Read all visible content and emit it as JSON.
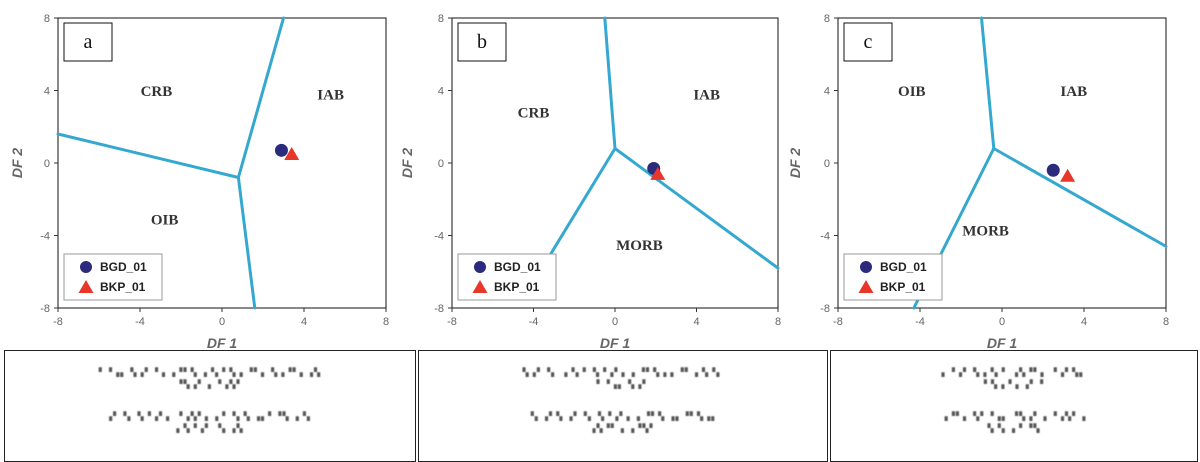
{
  "chart_data": [
    {
      "type": "scatter",
      "panel_label": "a",
      "xlabel": "DF 1",
      "ylabel": "DF 2",
      "xlim": [
        -8,
        8
      ],
      "ylim": [
        -8,
        8
      ],
      "xticks": [
        -8,
        -4,
        0,
        4,
        8
      ],
      "yticks": [
        -8,
        -4,
        0,
        4,
        8
      ],
      "grid": false,
      "legend_position": "bottom-left",
      "fields": [
        {
          "label": "CRB",
          "x": -3.2,
          "y": 3.7
        },
        {
          "label": "IAB",
          "x": 5.3,
          "y": 3.5
        },
        {
          "label": "OIB",
          "x": -2.8,
          "y": -3.4
        }
      ],
      "boundaries": [
        [
          [
            -8,
            1.6
          ],
          [
            0.8,
            -0.8
          ]
        ],
        [
          [
            0.8,
            -0.8
          ],
          [
            3.0,
            8
          ]
        ],
        [
          [
            0.8,
            -0.8
          ],
          [
            1.6,
            -8
          ]
        ]
      ],
      "series": [
        {
          "name": "BGD_01",
          "marker": "circle",
          "color": "#2b2a7c",
          "x": [
            2.9
          ],
          "y": [
            0.7
          ]
        },
        {
          "name": "BKP_01",
          "marker": "triangle",
          "color": "#e8362a",
          "x": [
            3.4
          ],
          "y": [
            0.5
          ]
        }
      ]
    },
    {
      "type": "scatter",
      "panel_label": "b",
      "xlabel": "DF 1",
      "ylabel": "DF 2",
      "xlim": [
        -8,
        8
      ],
      "ylim": [
        -8,
        8
      ],
      "xticks": [
        -8,
        -4,
        0,
        4,
        8
      ],
      "yticks": [
        -8,
        -4,
        0,
        4,
        8
      ],
      "grid": false,
      "legend_position": "bottom-left",
      "fields": [
        {
          "label": "CRB",
          "x": -4.0,
          "y": 2.5
        },
        {
          "label": "IAB",
          "x": 4.5,
          "y": 3.5
        },
        {
          "label": "MORB",
          "x": 1.2,
          "y": -4.8
        }
      ],
      "boundaries": [
        [
          [
            -0.5,
            8
          ],
          [
            0.0,
            0.8
          ]
        ],
        [
          [
            0.0,
            0.8
          ],
          [
            8,
            -5.8
          ]
        ],
        [
          [
            0.0,
            0.8
          ],
          [
            -4.5,
            -7.5
          ]
        ]
      ],
      "series": [
        {
          "name": "BGD_01",
          "marker": "circle",
          "color": "#2b2a7c",
          "x": [
            1.9
          ],
          "y": [
            -0.3
          ]
        },
        {
          "name": "BKP_01",
          "marker": "triangle",
          "color": "#e8362a",
          "x": [
            2.1
          ],
          "y": [
            -0.6
          ]
        }
      ]
    },
    {
      "type": "scatter",
      "panel_label": "c",
      "xlabel": "DF 1",
      "ylabel": "DF 2",
      "xlim": [
        -8,
        8
      ],
      "ylim": [
        -8,
        8
      ],
      "xticks": [
        -8,
        -4,
        0,
        4,
        8
      ],
      "yticks": [
        -8,
        -4,
        0,
        4,
        8
      ],
      "grid": false,
      "legend_position": "bottom-left",
      "fields": [
        {
          "label": "OIB",
          "x": -4.4,
          "y": 3.7
        },
        {
          "label": "IAB",
          "x": 3.5,
          "y": 3.7
        },
        {
          "label": "MORB",
          "x": -0.8,
          "y": -4.0
        }
      ],
      "boundaries": [
        [
          [
            -1.0,
            8
          ],
          [
            -0.4,
            0.8
          ]
        ],
        [
          [
            -0.4,
            0.8
          ],
          [
            8,
            -4.6
          ]
        ],
        [
          [
            -0.4,
            0.8
          ],
          [
            -4.3,
            -8
          ]
        ]
      ],
      "series": [
        {
          "name": "BGD_01",
          "marker": "circle",
          "color": "#2b2a7c",
          "x": [
            2.5
          ],
          "y": [
            -0.4
          ]
        },
        {
          "name": "BKP_01",
          "marker": "triangle",
          "color": "#e8362a",
          "x": [
            3.2
          ],
          "y": [
            -0.7
          ]
        }
      ]
    }
  ],
  "colors": {
    "boundary": "#35a8d0",
    "circle": "#2b2a7c",
    "triangle": "#e8362a",
    "axis": "#666666"
  }
}
